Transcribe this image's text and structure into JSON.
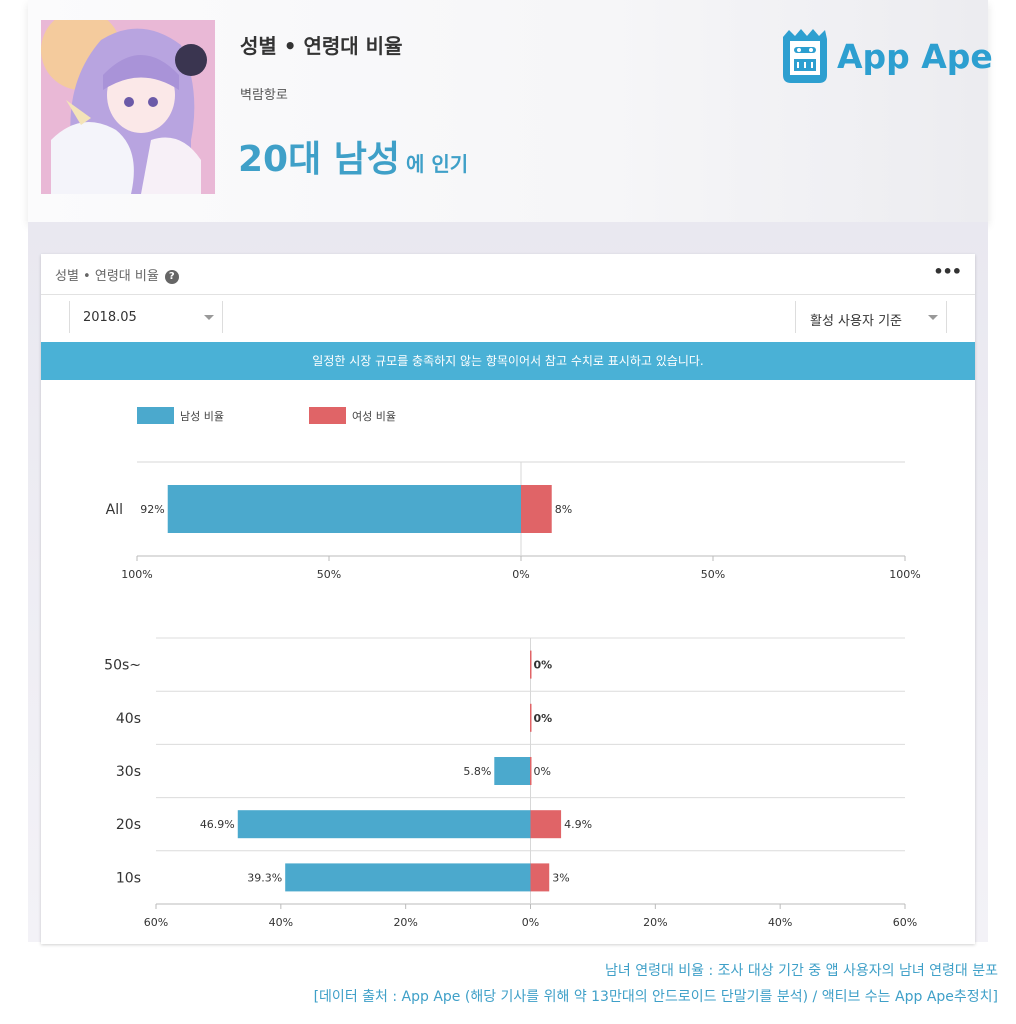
{
  "header": {
    "title": "성별 • 연령대 비율",
    "app_name": "벽람항로",
    "headline_big": "20대 남성",
    "headline_small": "에 인기",
    "logo_text": "App Ape"
  },
  "panel": {
    "title": "성별 • 연령대 비율",
    "help_glyph": "?",
    "more_glyph": "•••",
    "month": "2018.05",
    "basis": "활성 사용자 기준",
    "notice": "일정한 시장 규모를 충족하지 않는 항목이어서 참고 수치로 표시하고 있습니다."
  },
  "colors": {
    "male": "#4ba9cd",
    "female": "#e06467",
    "accent": "#3fa0c8"
  },
  "chart_data": [
    {
      "type": "bar",
      "orientation": "horizontal-diverging",
      "legend": [
        "남성 비율",
        "여성 비율"
      ],
      "categories": [
        "All"
      ],
      "series": [
        {
          "name": "남성 비율",
          "values": [
            92
          ],
          "labels": [
            "92%"
          ]
        },
        {
          "name": "여성 비율",
          "values": [
            8
          ],
          "labels": [
            "8%"
          ]
        }
      ],
      "xlim": [
        -100,
        100
      ],
      "tick_labels": [
        "100%",
        "50%",
        "0%",
        "50%",
        "100%"
      ]
    },
    {
      "type": "bar",
      "orientation": "horizontal-diverging",
      "categories": [
        "50s~",
        "40s",
        "30s",
        "20s",
        "10s"
      ],
      "series": [
        {
          "name": "남성 비율",
          "values": [
            0,
            0,
            5.8,
            46.9,
            39.3
          ],
          "labels": [
            "",
            "",
            "5.8%",
            "46.9%",
            "39.3%"
          ]
        },
        {
          "name": "여성 비율",
          "values": [
            0,
            0,
            0,
            4.9,
            3
          ],
          "labels": [
            "0%",
            "0%",
            "0%",
            "4.9%",
            "3%"
          ]
        }
      ],
      "xlim": [
        -60,
        60
      ],
      "tick_labels": [
        "60%",
        "40%",
        "20%",
        "0%",
        "20%",
        "40%",
        "60%"
      ]
    }
  ],
  "caption": {
    "line1": "남녀 연령대 비율 : 조사 대상 기간 중 앱 사용자의 남녀 연령대 분포",
    "line2": "[데이터 출처 : App Ape (해당 기사를 위해 약 13만대의 안드로이드 단말기를 분석) / 액티브 수는 App Ape추정치]"
  }
}
